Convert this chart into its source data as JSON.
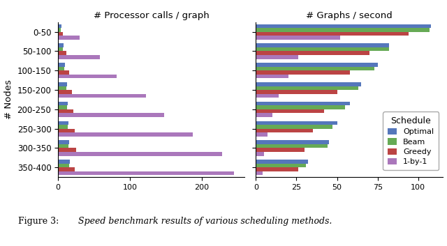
{
  "categories": [
    "0-50",
    "50-100",
    "100-150",
    "150-200",
    "200-250",
    "250-300",
    "300-350",
    "350-400"
  ],
  "schedules": [
    "Optimal",
    "Beam",
    "Greedy",
    "1-by-1"
  ],
  "colors": [
    "#5577bb",
    "#66aa55",
    "#bb4444",
    "#aa77bb"
  ],
  "proc_calls": {
    "Optimal": [
      5,
      8,
      10,
      12,
      13,
      14,
      15,
      16
    ],
    "Beam": [
      4,
      7,
      9,
      11,
      12,
      13,
      14,
      15
    ],
    "Greedy": [
      7,
      11,
      15,
      19,
      21,
      23,
      25,
      23
    ],
    "1-by-1": [
      30,
      58,
      82,
      122,
      148,
      188,
      228,
      245
    ]
  },
  "graphs_per_sec": {
    "Optimal": [
      108,
      82,
      75,
      65,
      58,
      50,
      45,
      32
    ],
    "Beam": [
      107,
      82,
      73,
      63,
      55,
      47,
      44,
      31
    ],
    "Greedy": [
      94,
      70,
      58,
      50,
      42,
      35,
      30,
      26
    ],
    "1-by-1": [
      52,
      26,
      20,
      14,
      10,
      7,
      5,
      4
    ]
  },
  "title_left": "# Processor calls / graph",
  "title_right": "# Graphs / second",
  "ylabel": "# Nodes",
  "legend_title": "Schedule",
  "caption_bold": "Figure 3: ",
  "caption_italic": "Speed benchmark results of various scheduling methods.",
  "xlim_left": [
    0,
    260
  ],
  "xlim_right": [
    0,
    115
  ],
  "xticks_left": [
    0,
    100,
    200
  ],
  "xticks_right": [
    0,
    25,
    50,
    75,
    100
  ]
}
